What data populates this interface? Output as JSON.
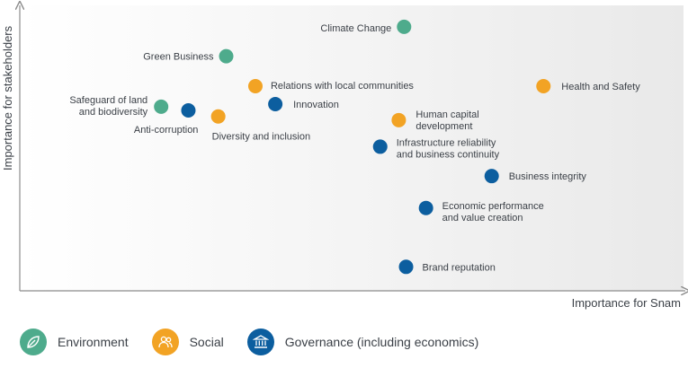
{
  "colors": {
    "environment": "#4eab8c",
    "social": "#f2a324",
    "governance": "#0c5e9f",
    "axis": "#8c8c8c",
    "text": "#3b4047"
  },
  "chart_data": {
    "type": "scatter",
    "xlabel": "Importance for Snam",
    "ylabel": "Importance for stakeholders",
    "xlim": [
      0,
      100
    ],
    "ylim": [
      0,
      100
    ],
    "grid": false,
    "legend_position": "bottom-left",
    "series": [
      {
        "name": "Environment",
        "color": "#4eab8c",
        "icon": "leaf-icon",
        "points": [
          {
            "label": "Climate Change",
            "x": 57.9,
            "y": 92.5
          },
          {
            "label": "Green Business",
            "x": 31.1,
            "y": 82.2
          },
          {
            "label": "Safeguard of land and biodiversity",
            "x": 21.3,
            "y": 64.5
          }
        ]
      },
      {
        "name": "Social",
        "color": "#f2a324",
        "icon": "people-icon",
        "points": [
          {
            "label": "Health and Safety",
            "x": 78.9,
            "y": 71.7
          },
          {
            "label": "Relations with local communities",
            "x": 35.5,
            "y": 71.7
          },
          {
            "label": "Human capital development",
            "x": 57.1,
            "y": 59.8
          },
          {
            "label": "Diversity and inclusion",
            "x": 29.9,
            "y": 61.1
          }
        ]
      },
      {
        "name": "Governance (including economics)",
        "color": "#0c5e9f",
        "icon": "building-icon",
        "points": [
          {
            "label": "Innovation",
            "x": 38.5,
            "y": 65.4
          },
          {
            "label": "Anti-corruption",
            "x": 25.4,
            "y": 63.2
          },
          {
            "label": "Infrastructure reliability and business continuity",
            "x": 54.3,
            "y": 50.5
          },
          {
            "label": "Business integrity",
            "x": 71.1,
            "y": 40.2
          },
          {
            "label": "Economic performance and value creation",
            "x": 61.2,
            "y": 29.0
          },
          {
            "label": "Brand reputation",
            "x": 58.2,
            "y": 8.4
          }
        ]
      }
    ]
  }
}
